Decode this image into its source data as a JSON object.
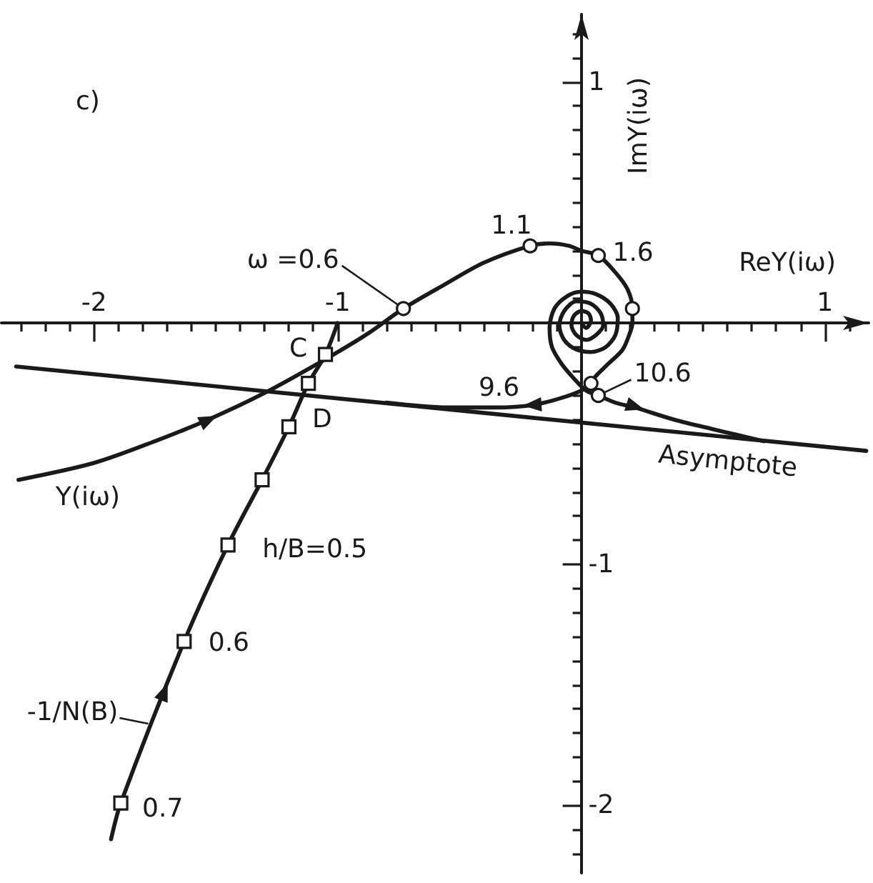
{
  "chart_data": {
    "type": "line",
    "title": "c)",
    "xlabel": "ReY(iω)",
    "ylabel": "ImY(iω)",
    "xlim": [
      -2.38,
      1.18
    ],
    "ylim": [
      -2.28,
      1.28
    ],
    "xticks": [
      {
        "value": -2.3,
        "label": null
      },
      {
        "value": -2.2,
        "label": null
      },
      {
        "value": -2.1,
        "label": null
      },
      -2,
      {
        "value": -1.9,
        "label": null
      },
      {
        "value": -1.8,
        "label": null
      },
      {
        "value": -1.7,
        "label": null
      },
      {
        "value": -1.6,
        "label": null
      },
      {
        "value": -1.5,
        "label": null
      },
      {
        "value": -1.4,
        "label": null
      },
      {
        "value": -1.3,
        "label": null
      },
      {
        "value": -1.2,
        "label": null
      },
      {
        "value": -1.1,
        "label": null
      },
      -1,
      {
        "value": -0.9,
        "label": null
      },
      {
        "value": -0.8,
        "label": null
      },
      {
        "value": -0.7,
        "label": null
      },
      {
        "value": -0.6,
        "label": null
      },
      {
        "value": -0.5,
        "label": null
      },
      {
        "value": -0.4,
        "label": null
      },
      {
        "value": -0.3,
        "label": null
      },
      {
        "value": -0.2,
        "label": null
      },
      {
        "value": -0.1,
        "label": null
      },
      {
        "value": 0.1,
        "label": null
      },
      {
        "value": 0.2,
        "label": null
      },
      {
        "value": 0.3,
        "label": null
      },
      {
        "value": 0.4,
        "label": null
      },
      {
        "value": 0.5,
        "label": null
      },
      {
        "value": 0.6,
        "label": null
      },
      {
        "value": 0.7,
        "label": null
      },
      {
        "value": 0.8,
        "label": null
      },
      {
        "value": 0.9,
        "label": null
      },
      1,
      {
        "value": 1.1,
        "label": null
      }
    ],
    "yticks": [
      {
        "value": -2.2,
        "label": null
      },
      {
        "value": -2.1,
        "label": null
      },
      -2,
      {
        "value": -1.9,
        "label": null
      },
      {
        "value": -1.8,
        "label": null
      },
      {
        "value": -1.7,
        "label": null
      },
      {
        "value": -1.6,
        "label": null
      },
      {
        "value": -1.5,
        "label": null
      },
      {
        "value": -1.4,
        "label": null
      },
      {
        "value": -1.3,
        "label": null
      },
      {
        "value": -1.2,
        "label": null
      },
      {
        "value": -1.1,
        "label": null
      },
      -1,
      {
        "value": -0.9,
        "label": null
      },
      {
        "value": -0.8,
        "label": null
      },
      {
        "value": -0.7,
        "label": null
      },
      {
        "value": -0.6,
        "label": null
      },
      {
        "value": -0.5,
        "label": null
      },
      {
        "value": -0.4,
        "label": null
      },
      {
        "value": -0.3,
        "label": null
      },
      {
        "value": -0.2,
        "label": null
      },
      {
        "value": -0.1,
        "label": null
      },
      {
        "value": 0.1,
        "label": null
      },
      {
        "value": 0.2,
        "label": null
      },
      {
        "value": 0.3,
        "label": null
      },
      {
        "value": 0.4,
        "label": null
      },
      {
        "value": 0.5,
        "label": null
      },
      {
        "value": 0.6,
        "label": null
      },
      {
        "value": 0.7,
        "label": null
      },
      {
        "value": 0.8,
        "label": null
      },
      {
        "value": 0.9,
        "label": null
      },
      1,
      {
        "value": 1.1,
        "label": null
      },
      {
        "value": 1.2,
        "label": null
      }
    ],
    "grid": false,
    "marker": "none",
    "series": [
      {
        "name": "Y(iω)",
        "color": "#1a1a1a",
        "x": [
          -2.31,
          -2.0,
          -1.75,
          -1.53,
          -1.3,
          -1.05,
          -0.87,
          -0.73,
          -0.56,
          -0.4,
          -0.21,
          -0.13,
          -0.05,
          0.0,
          0.07,
          0.14,
          0.19,
          0.21,
          0.21,
          0.2,
          0.17,
          0.11,
          0.06,
          0.04,
          0.0,
          -0.08,
          -0.2,
          -0.35,
          -0.55,
          -0.8,
          null,
          0.75,
          0.54,
          0.38,
          0.22,
          0.14,
          0.07,
          0.02,
          -0.03,
          -0.08,
          -0.12,
          -0.13,
          -0.11,
          -0.06,
          0.0,
          0.06,
          0.12,
          0.15,
          0.14,
          0.1,
          0.04,
          -0.02,
          -0.07,
          -0.09,
          -0.07,
          -0.02,
          0.04,
          0.08,
          0.09,
          0.06,
          0.02,
          -0.02,
          -0.04,
          -0.03,
          0.0,
          0.03,
          0.04,
          0.02,
          0.0
        ],
        "values": [
          -0.65,
          -0.58,
          -0.49,
          -0.4,
          -0.29,
          -0.15,
          -0.04,
          0.06,
          0.16,
          0.25,
          0.32,
          0.33,
          0.32,
          0.3,
          0.28,
          0.21,
          0.14,
          0.06,
          0.0,
          -0.04,
          -0.11,
          -0.17,
          -0.22,
          -0.25,
          -0.28,
          -0.31,
          -0.34,
          -0.35,
          -0.35,
          -0.33,
          null,
          -0.49,
          -0.44,
          -0.4,
          -0.35,
          -0.33,
          -0.3,
          -0.28,
          -0.23,
          -0.17,
          -0.1,
          -0.02,
          0.06,
          0.11,
          0.13,
          0.12,
          0.08,
          0.02,
          -0.05,
          -0.1,
          -0.12,
          -0.11,
          -0.07,
          -0.01,
          0.05,
          0.09,
          0.08,
          0.04,
          -0.01,
          -0.05,
          -0.07,
          -0.05,
          -0.01,
          0.03,
          0.05,
          0.04,
          0.01,
          -0.02,
          0.0
        ]
      },
      {
        "type": "scatter",
        "marker": "circle",
        "color": "#1a1a1a",
        "x": [
          -0.73,
          -0.21,
          0.07,
          0.21,
          0.04,
          0.07
        ],
        "values": [
          0.06,
          0.32,
          0.28,
          0.06,
          -0.25,
          -0.3
        ]
      },
      {
        "name": "-1/N(B)",
        "color": "#1a1a1a",
        "x": [
          -1.0,
          -1.05,
          -1.12,
          -1.2,
          -1.31,
          -1.45,
          -1.63,
          -1.89,
          -1.93
        ],
        "values": [
          0.0,
          -0.13,
          -0.25,
          -0.43,
          -0.65,
          -0.92,
          -1.32,
          -1.99,
          -2.14
        ]
      },
      {
        "type": "scatter",
        "marker": "square",
        "color": "#1a1a1a",
        "x": [
          -1.05,
          -1.12,
          -1.2,
          -1.31,
          -1.45,
          -1.63,
          -1.89
        ],
        "values": [
          -0.13,
          -0.25,
          -0.43,
          -0.65,
          -0.92,
          -1.32,
          -1.99
        ]
      },
      {
        "name": "Asymptote",
        "color": "#1a1a1a",
        "x": [
          -2.32,
          1.17
        ],
        "values": [
          -0.18,
          -0.53
        ]
      }
    ],
    "annotations": [
      {
        "text": "C",
        "x": -1.05,
        "y": -0.13
      },
      {
        "text": "D",
        "x": -1.14,
        "y": -0.3
      },
      {
        "text": "ω =0.6",
        "x": -0.73,
        "y": 0.06
      },
      {
        "text": "1.1",
        "x": -0.21,
        "y": 0.32
      },
      {
        "text": "1.6",
        "x": 0.07,
        "y": 0.28
      },
      {
        "text": "9.6",
        "x": 0.04,
        "y": -0.25
      },
      {
        "text": "10.6",
        "x": 0.07,
        "y": -0.3
      },
      {
        "text": "h/B=0.5",
        "x": -1.45,
        "y": -0.92
      },
      {
        "text": "0.6",
        "x": -1.63,
        "y": -1.32
      },
      {
        "text": "0.7",
        "x": -1.89,
        "y": -1.99
      }
    ]
  }
}
